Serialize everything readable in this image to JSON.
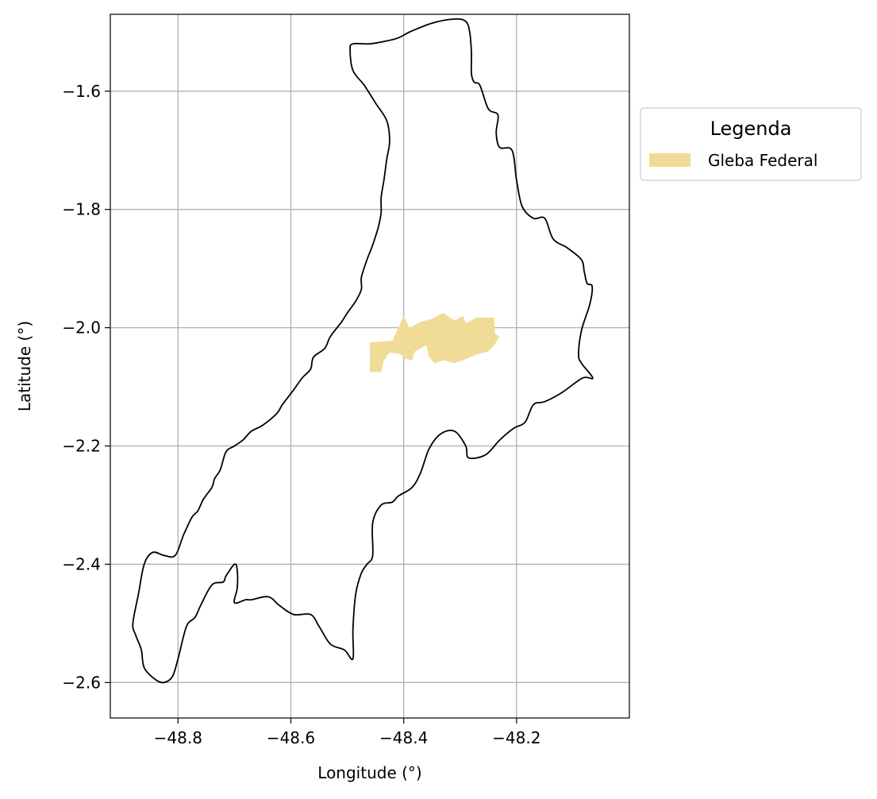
{
  "chart_data": {
    "type": "map",
    "title": "",
    "xlabel": "Longitude (°)",
    "ylabel": "Latitude (°)",
    "xlim": [
      -48.92,
      -48.0
    ],
    "ylim": [
      -2.66,
      -1.47
    ],
    "xticks": [
      -48.8,
      -48.6,
      -48.4,
      -48.2
    ],
    "xtick_labels": [
      "−48.8",
      "−48.6",
      "−48.4",
      "−48.2"
    ],
    "yticks": [
      -1.6,
      -1.8,
      -2.0,
      -2.2,
      -2.4,
      -2.6
    ],
    "ytick_labels": [
      "−1.6",
      "−1.8",
      "−2.0",
      "−2.2",
      "−2.4",
      "−2.6"
    ],
    "grid": true,
    "legend": {
      "title": "Legenda",
      "placement": "outside-upper-right",
      "entries": [
        {
          "label": "Gleba Federal",
          "color": "#f0dc96"
        }
      ]
    },
    "layers": [
      {
        "name": "municipality-boundary",
        "type": "outline",
        "stroke": "#000000",
        "coordinates": [
          [
            -48.39,
            -1.5
          ],
          [
            -48.35,
            -1.485
          ],
          [
            -48.31,
            -1.478
          ],
          [
            -48.29,
            -1.482
          ],
          [
            -48.283,
            -1.5
          ],
          [
            -48.28,
            -1.535
          ],
          [
            -48.28,
            -1.57
          ],
          [
            -48.275,
            -1.585
          ],
          [
            -48.265,
            -1.59
          ],
          [
            -48.25,
            -1.63
          ],
          [
            -48.233,
            -1.64
          ],
          [
            -48.236,
            -1.67
          ],
          [
            -48.23,
            -1.695
          ],
          [
            -48.208,
            -1.7
          ],
          [
            -48.2,
            -1.75
          ],
          [
            -48.19,
            -1.795
          ],
          [
            -48.17,
            -1.815
          ],
          [
            -48.15,
            -1.815
          ],
          [
            -48.135,
            -1.85
          ],
          [
            -48.11,
            -1.865
          ],
          [
            -48.085,
            -1.885
          ],
          [
            -48.08,
            -1.905
          ],
          [
            -48.075,
            -1.925
          ],
          [
            -48.066,
            -1.93
          ],
          [
            -48.07,
            -1.96
          ],
          [
            -48.085,
            -2.005
          ],
          [
            -48.09,
            -2.045
          ],
          [
            -48.085,
            -2.06
          ],
          [
            -48.065,
            -2.085
          ],
          [
            -48.083,
            -2.085
          ],
          [
            -48.12,
            -2.11
          ],
          [
            -48.15,
            -2.125
          ],
          [
            -48.17,
            -2.13
          ],
          [
            -48.185,
            -2.16
          ],
          [
            -48.205,
            -2.17
          ],
          [
            -48.23,
            -2.19
          ],
          [
            -48.255,
            -2.215
          ],
          [
            -48.285,
            -2.22
          ],
          [
            -48.29,
            -2.2
          ],
          [
            -48.31,
            -2.175
          ],
          [
            -48.335,
            -2.18
          ],
          [
            -48.355,
            -2.205
          ],
          [
            -48.37,
            -2.245
          ],
          [
            -48.385,
            -2.27
          ],
          [
            -48.41,
            -2.285
          ],
          [
            -48.42,
            -2.295
          ],
          [
            -48.44,
            -2.3
          ],
          [
            -48.455,
            -2.33
          ],
          [
            -48.455,
            -2.385
          ],
          [
            -48.465,
            -2.4
          ],
          [
            -48.475,
            -2.415
          ],
          [
            -48.485,
            -2.45
          ],
          [
            -48.49,
            -2.51
          ],
          [
            -48.49,
            -2.56
          ],
          [
            -48.505,
            -2.545
          ],
          [
            -48.53,
            -2.535
          ],
          [
            -48.55,
            -2.505
          ],
          [
            -48.565,
            -2.485
          ],
          [
            -48.595,
            -2.485
          ],
          [
            -48.62,
            -2.47
          ],
          [
            -48.64,
            -2.455
          ],
          [
            -48.67,
            -2.46
          ],
          [
            -48.68,
            -2.46
          ],
          [
            -48.7,
            -2.465
          ],
          [
            -48.695,
            -2.44
          ],
          [
            -48.695,
            -2.41
          ],
          [
            -48.7,
            -2.4
          ],
          [
            -48.715,
            -2.42
          ],
          [
            -48.72,
            -2.43
          ],
          [
            -48.74,
            -2.435
          ],
          [
            -48.76,
            -2.47
          ],
          [
            -48.77,
            -2.49
          ],
          [
            -48.785,
            -2.505
          ],
          [
            -48.8,
            -2.56
          ],
          [
            -48.81,
            -2.59
          ],
          [
            -48.825,
            -2.6
          ],
          [
            -48.84,
            -2.595
          ],
          [
            -48.86,
            -2.575
          ],
          [
            -48.865,
            -2.545
          ],
          [
            -48.875,
            -2.52
          ],
          [
            -48.88,
            -2.5
          ],
          [
            -48.87,
            -2.45
          ],
          [
            -48.86,
            -2.4
          ],
          [
            -48.845,
            -2.38
          ],
          [
            -48.825,
            -2.385
          ],
          [
            -48.805,
            -2.385
          ],
          [
            -48.79,
            -2.35
          ],
          [
            -48.775,
            -2.32
          ],
          [
            -48.765,
            -2.31
          ],
          [
            -48.755,
            -2.29
          ],
          [
            -48.74,
            -2.27
          ],
          [
            -48.735,
            -2.255
          ],
          [
            -48.725,
            -2.24
          ],
          [
            -48.715,
            -2.21
          ],
          [
            -48.7,
            -2.2
          ],
          [
            -48.685,
            -2.19
          ],
          [
            -48.67,
            -2.175
          ],
          [
            -48.65,
            -2.165
          ],
          [
            -48.625,
            -2.145
          ],
          [
            -48.615,
            -2.13
          ],
          [
            -48.595,
            -2.105
          ],
          [
            -48.58,
            -2.085
          ],
          [
            -48.565,
            -2.07
          ],
          [
            -48.56,
            -2.05
          ],
          [
            -48.54,
            -2.035
          ],
          [
            -48.53,
            -2.015
          ],
          [
            -48.51,
            -1.99
          ],
          [
            -48.5,
            -1.975
          ],
          [
            -48.485,
            -1.955
          ],
          [
            -48.475,
            -1.935
          ],
          [
            -48.475,
            -1.915
          ],
          [
            -48.465,
            -1.885
          ],
          [
            -48.455,
            -1.86
          ],
          [
            -48.445,
            -1.83
          ],
          [
            -48.44,
            -1.805
          ],
          [
            -48.44,
            -1.78
          ],
          [
            -48.435,
            -1.75
          ],
          [
            -48.43,
            -1.715
          ],
          [
            -48.425,
            -1.685
          ],
          [
            -48.43,
            -1.65
          ],
          [
            -48.45,
            -1.62
          ],
          [
            -48.47,
            -1.59
          ],
          [
            -48.49,
            -1.565
          ],
          [
            -48.495,
            -1.53
          ],
          [
            -48.49,
            -1.52
          ],
          [
            -48.46,
            -1.52
          ],
          [
            -48.43,
            -1.515
          ],
          [
            -48.41,
            -1.51
          ],
          [
            -48.39,
            -1.5
          ]
        ]
      },
      {
        "name": "Gleba Federal",
        "type": "polygon",
        "fill": "#f0dc96",
        "coordinates": [
          [
            -48.46,
            -2.025
          ],
          [
            -48.42,
            -2.022
          ],
          [
            -48.4,
            -1.98
          ],
          [
            -48.39,
            -2.0
          ],
          [
            -48.37,
            -1.99
          ],
          [
            -48.35,
            -1.985
          ],
          [
            -48.33,
            -1.975
          ],
          [
            -48.31,
            -1.988
          ],
          [
            -48.295,
            -1.98
          ],
          [
            -48.29,
            -1.992
          ],
          [
            -48.27,
            -1.983
          ],
          [
            -48.24,
            -1.983
          ],
          [
            -48.238,
            -2.01
          ],
          [
            -48.23,
            -2.015
          ],
          [
            -48.24,
            -2.03
          ],
          [
            -48.25,
            -2.04
          ],
          [
            -48.27,
            -2.045
          ],
          [
            -48.295,
            -2.055
          ],
          [
            -48.31,
            -2.06
          ],
          [
            -48.33,
            -2.055
          ],
          [
            -48.345,
            -2.06
          ],
          [
            -48.355,
            -2.05
          ],
          [
            -48.36,
            -2.03
          ],
          [
            -48.38,
            -2.04
          ],
          [
            -48.385,
            -2.055
          ],
          [
            -48.4,
            -2.052
          ],
          [
            -48.405,
            -2.045
          ],
          [
            -48.425,
            -2.042
          ],
          [
            -48.435,
            -2.055
          ],
          [
            -48.44,
            -2.075
          ],
          [
            -48.46,
            -2.075
          ]
        ]
      }
    ]
  }
}
